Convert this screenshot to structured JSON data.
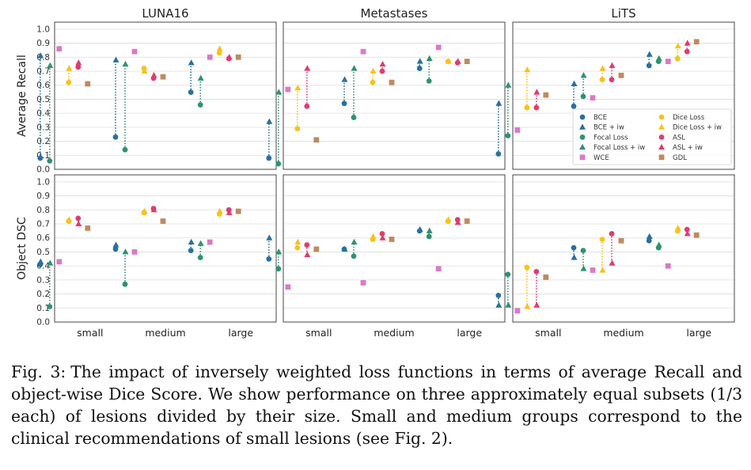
{
  "figure": {
    "caption_label": "Fig. 3:",
    "caption_text": "The impact of inversely weighted loss functions in terms of average Recall and object-wise Dice Score. We show performance on three approximately equal subsets (1/3 each) of lesions divided by their size. Small and medium groups correspond to the clinical recommendations of small lesions (see Fig. 2)."
  },
  "chart_data": {
    "type": "scatter",
    "columns": [
      "LUNA16",
      "Metastases",
      "LiTS"
    ],
    "rows": [
      "Average Recall",
      "Object DSC"
    ],
    "categories": [
      "small",
      "medium",
      "large"
    ],
    "ylim": [
      0,
      1.05
    ],
    "yticks": [
      "0.0",
      "0.1",
      "0.2",
      "0.3",
      "0.4",
      "0.5",
      "0.6",
      "0.7",
      "0.8",
      "0.9",
      "1.0"
    ],
    "grid": true,
    "legend_position": "lower-right of LiTS Average Recall panel",
    "methods": [
      {
        "name": "BCE",
        "color": "#2a6fa0",
        "marker": "circle"
      },
      {
        "name": "BCE + iw",
        "color": "#2a6fa0",
        "marker": "triangle"
      },
      {
        "name": "Focal Loss",
        "color": "#2e9270",
        "marker": "circle"
      },
      {
        "name": "Focal Loss + iw",
        "color": "#2e9270",
        "marker": "triangle"
      },
      {
        "name": "WCE",
        "color": "#d97ac6",
        "marker": "square"
      },
      {
        "name": "Dice Loss",
        "color": "#f7c21a",
        "marker": "circle"
      },
      {
        "name": "Dice Loss + iw",
        "color": "#f7c21a",
        "marker": "triangle"
      },
      {
        "name": "ASL",
        "color": "#e03c6e",
        "marker": "circle"
      },
      {
        "name": "ASL + iw",
        "color": "#e03c6e",
        "marker": "triangle"
      },
      {
        "name": "GDL",
        "color": "#bd8a5f",
        "marker": "square"
      }
    ],
    "pairs": [
      {
        "base": "BCE",
        "iw": "BCE + iw"
      },
      {
        "base": "Focal Loss",
        "iw": "Focal Loss + iw"
      },
      {
        "base": "Dice Loss",
        "iw": "Dice Loss + iw"
      },
      {
        "base": "ASL",
        "iw": "ASL + iw"
      }
    ],
    "values": {
      "Average Recall": {
        "LUNA16": {
          "small": {
            "BCE": 0.08,
            "BCE + iw": 0.81,
            "Focal Loss": 0.06,
            "Focal Loss + iw": 0.74,
            "WCE": 0.86,
            "Dice Loss": 0.62,
            "Dice Loss + iw": 0.72,
            "ASL": 0.73,
            "ASL + iw": 0.76,
            "GDL": 0.61
          },
          "medium": {
            "BCE": 0.23,
            "BCE + iw": 0.78,
            "Focal Loss": 0.14,
            "Focal Loss + iw": 0.75,
            "WCE": 0.84,
            "Dice Loss": 0.72,
            "Dice Loss + iw": 0.7,
            "ASL": 0.65,
            "ASL + iw": 0.67,
            "GDL": 0.66
          },
          "large": {
            "BCE": 0.55,
            "BCE + iw": 0.76,
            "Focal Loss": 0.46,
            "Focal Loss + iw": 0.65,
            "WCE": 0.8,
            "Dice Loss": 0.83,
            "Dice Loss + iw": 0.86,
            "ASL": 0.79,
            "ASL + iw": 0.8,
            "GDL": 0.8
          }
        },
        "Metastases": {
          "small": {
            "BCE": 0.08,
            "BCE + iw": 0.34,
            "Focal Loss": 0.04,
            "Focal Loss + iw": 0.55,
            "WCE": 0.57,
            "Dice Loss": 0.29,
            "Dice Loss + iw": 0.58,
            "ASL": 0.45,
            "ASL + iw": 0.72,
            "GDL": 0.21
          },
          "medium": {
            "BCE": 0.47,
            "BCE + iw": 0.64,
            "Focal Loss": 0.37,
            "Focal Loss + iw": 0.72,
            "WCE": 0.84,
            "Dice Loss": 0.62,
            "Dice Loss + iw": 0.7,
            "ASL": 0.7,
            "ASL + iw": 0.75,
            "GDL": 0.62
          },
          "large": {
            "BCE": 0.72,
            "BCE + iw": 0.77,
            "Focal Loss": 0.63,
            "Focal Loss + iw": 0.79,
            "WCE": 0.87,
            "Dice Loss": 0.77,
            "Dice Loss + iw": 0.77,
            "ASL": 0.76,
            "ASL + iw": 0.77,
            "GDL": 0.77
          }
        },
        "LiTS": {
          "small": {
            "BCE": 0.11,
            "BCE + iw": 0.47,
            "Focal Loss": 0.24,
            "Focal Loss + iw": 0.6,
            "WCE": 0.28,
            "Dice Loss": 0.44,
            "Dice Loss + iw": 0.71,
            "ASL": 0.44,
            "ASL + iw": 0.55,
            "GDL": 0.53
          },
          "medium": {
            "BCE": 0.45,
            "BCE + iw": 0.61,
            "Focal Loss": 0.52,
            "Focal Loss + iw": 0.67,
            "WCE": 0.51,
            "Dice Loss": 0.64,
            "Dice Loss + iw": 0.72,
            "ASL": 0.64,
            "ASL + iw": 0.74,
            "GDL": 0.67
          },
          "large": {
            "BCE": 0.74,
            "BCE + iw": 0.82,
            "Focal Loss": 0.77,
            "Focal Loss + iw": 0.79,
            "WCE": 0.77,
            "Dice Loss": 0.79,
            "Dice Loss + iw": 0.88,
            "ASL": 0.84,
            "ASL + iw": 0.9,
            "GDL": 0.91
          }
        }
      },
      "Object DSC": {
        "LUNA16": {
          "small": {
            "BCE": 0.41,
            "BCE + iw": 0.43,
            "Focal Loss": 0.11,
            "Focal Loss + iw": 0.42,
            "WCE": 0.43,
            "Dice Loss": 0.72,
            "Dice Loss + iw": 0.73,
            "ASL": 0.74,
            "ASL + iw": 0.7,
            "GDL": 0.67
          },
          "medium": {
            "BCE": 0.52,
            "BCE + iw": 0.55,
            "Focal Loss": 0.27,
            "Focal Loss + iw": 0.5,
            "WCE": 0.5,
            "Dice Loss": 0.78,
            "Dice Loss + iw": 0.79,
            "ASL": 0.81,
            "ASL + iw": 0.8,
            "GDL": 0.72
          },
          "large": {
            "BCE": 0.51,
            "BCE + iw": 0.57,
            "Focal Loss": 0.46,
            "Focal Loss + iw": 0.56,
            "WCE": 0.57,
            "Dice Loss": 0.77,
            "Dice Loss + iw": 0.79,
            "ASL": 0.8,
            "ASL + iw": 0.78,
            "GDL": 0.79
          }
        },
        "Metastases": {
          "small": {
            "BCE": 0.45,
            "BCE + iw": 0.6,
            "Focal Loss": 0.38,
            "Focal Loss + iw": 0.5,
            "WCE": 0.25,
            "Dice Loss": 0.53,
            "Dice Loss + iw": 0.57,
            "ASL": 0.55,
            "ASL + iw": 0.48,
            "GDL": 0.52
          },
          "medium": {
            "BCE": 0.52,
            "BCE + iw": 0.52,
            "Focal Loss": 0.47,
            "Focal Loss + iw": 0.57,
            "WCE": 0.28,
            "Dice Loss": 0.59,
            "Dice Loss + iw": 0.61,
            "ASL": 0.63,
            "ASL + iw": 0.6,
            "GDL": 0.59
          },
          "large": {
            "BCE": 0.65,
            "BCE + iw": 0.66,
            "Focal Loss": 0.61,
            "Focal Loss + iw": 0.65,
            "WCE": 0.38,
            "Dice Loss": 0.72,
            "Dice Loss + iw": 0.73,
            "ASL": 0.73,
            "ASL + iw": 0.71,
            "GDL": 0.72
          }
        },
        "LiTS": {
          "small": {
            "BCE": 0.19,
            "BCE + iw": 0.12,
            "Focal Loss": 0.34,
            "Focal Loss + iw": 0.12,
            "WCE": 0.08,
            "Dice Loss": 0.39,
            "Dice Loss + iw": 0.11,
            "ASL": 0.36,
            "ASL + iw": 0.12,
            "GDL": 0.32
          },
          "medium": {
            "BCE": 0.53,
            "BCE + iw": 0.46,
            "Focal Loss": 0.51,
            "Focal Loss + iw": 0.38,
            "WCE": 0.37,
            "Dice Loss": 0.59,
            "Dice Loss + iw": 0.37,
            "ASL": 0.63,
            "ASL + iw": 0.42,
            "GDL": 0.58
          },
          "large": {
            "BCE": 0.58,
            "BCE + iw": 0.61,
            "Focal Loss": 0.53,
            "Focal Loss + iw": 0.55,
            "WCE": 0.4,
            "Dice Loss": 0.65,
            "Dice Loss + iw": 0.67,
            "ASL": 0.66,
            "ASL + iw": 0.63,
            "GDL": 0.62
          }
        }
      }
    }
  }
}
